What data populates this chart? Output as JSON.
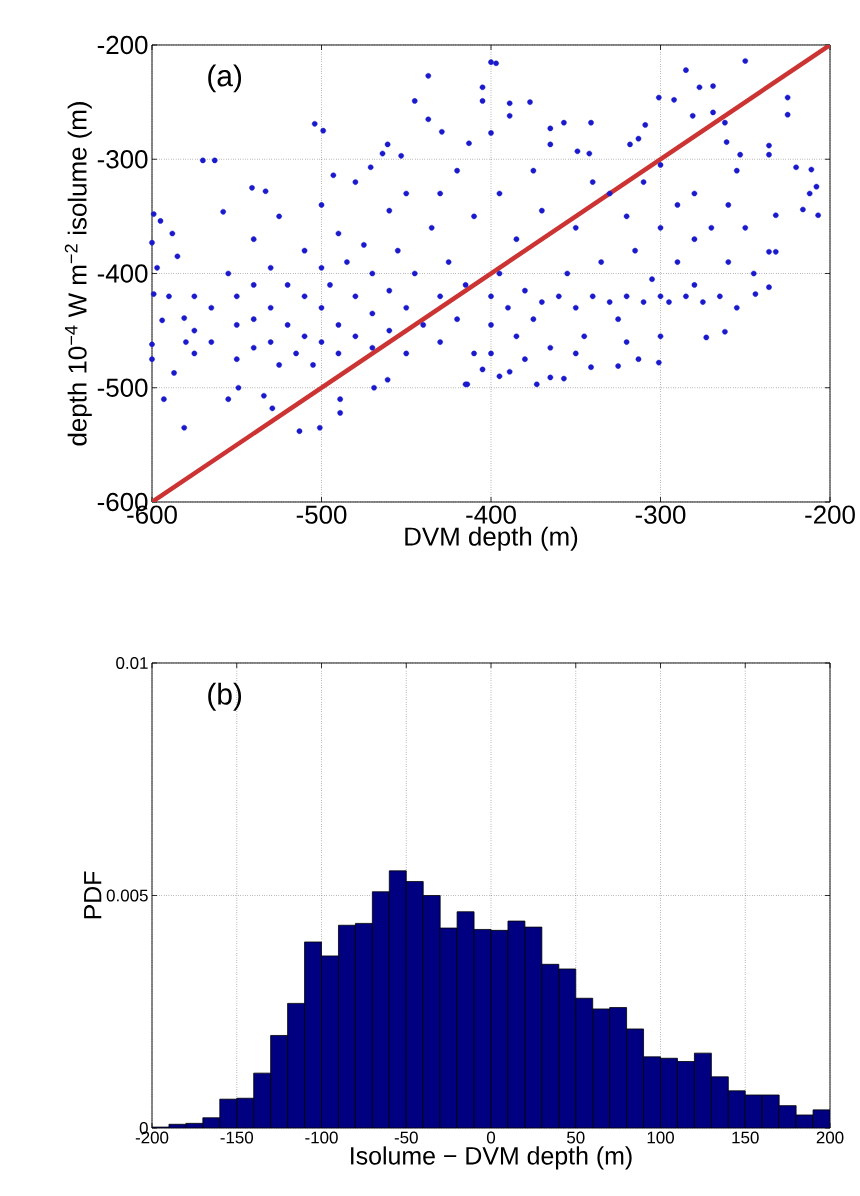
{
  "chart_data": [
    {
      "type": "scatter",
      "xlabel": "DVM depth (m)",
      "ylabel": "depth 10$^{−4}$ W m$^{−2}$ isolume (m)",
      "annotations": [
        "(a)"
      ],
      "series": [
        {
          "type": "scatter",
          "color": "#1a1acc",
          "marker": "circle",
          "x": [
            -437,
            -445,
            -437,
            -429,
            -504,
            -499,
            -570,
            -563,
            -461,
            -464,
            -453,
            -471,
            -541,
            -533,
            -493,
            -599,
            -595,
            -558,
            -581,
            -593,
            -555,
            -549,
            -513,
            -501,
            -489,
            -489,
            -529,
            -534,
            -469,
            -461,
            -587,
            -600,
            -600,
            -594,
            -599,
            -597,
            -600,
            -588,
            -581,
            -415,
            -400,
            -397,
            -405,
            -405,
            -389,
            -377,
            -389,
            -285,
            -250,
            -277,
            -269,
            -301,
            -292,
            -225,
            -225,
            -281,
            -269,
            -262,
            -261,
            -253,
            -236,
            -236,
            -220,
            -211,
            -208,
            -216,
            -207,
            -212,
            -232,
            -232,
            -236,
            -236,
            -244,
            -262,
            -273,
            -301,
            -313,
            -325,
            -341,
            -357,
            -365,
            -373,
            -414,
            -389,
            -405,
            -309,
            -313,
            -318,
            -365,
            -357,
            -341,
            -349,
            -342,
            -365,
            -413,
            -400,
            -575,
            -575,
            -575,
            -565,
            -565,
            -555,
            -550,
            -550,
            -550,
            -540,
            -540,
            -540,
            -530,
            -530,
            -530,
            -525,
            -520,
            -520,
            -515,
            -510,
            -510,
            -510,
            -505,
            -500,
            -500,
            -500,
            -495,
            -490,
            -490,
            -485,
            -480,
            -480,
            -475,
            -470,
            -470,
            -470,
            -460,
            -460,
            -455,
            -450,
            -450,
            -445,
            -440,
            -435,
            -430,
            -430,
            -425,
            -420,
            -415,
            -410,
            -410,
            -540,
            -525,
            -500,
            -490,
            -460,
            -450,
            -480,
            -430,
            -420,
            -585,
            -590,
            -580,
            -400,
            -400,
            -400,
            -395,
            -390,
            -385,
            -380,
            -375,
            -370,
            -365,
            -360,
            -355,
            -350,
            -345,
            -340,
            -335,
            -330,
            -325,
            -320,
            -315,
            -310,
            -305,
            -300,
            -300,
            -295,
            -290,
            -290,
            -285,
            -280,
            -280,
            -280,
            -275,
            -270,
            -265,
            -260,
            -255,
            -320,
            -330,
            -310,
            -300,
            -350,
            -370,
            -385,
            -395,
            -375,
            -340,
            -260,
            -250,
            -245,
            -255,
            -300,
            -320,
            -350,
            -380,
            -395
          ],
          "values": [
            -227,
            -249,
            -265,
            -276,
            -269,
            -275,
            -301,
            -301,
            -287,
            -295,
            -297,
            -307,
            -325,
            -328,
            -314,
            -348,
            -354,
            -346,
            -535,
            -510,
            -510,
            -500,
            -538,
            -535,
            -510,
            -522,
            -518,
            -507,
            -500,
            -493,
            -487,
            -475,
            -462,
            -441,
            -418,
            -395,
            -373,
            -365,
            -439,
            -497,
            -215,
            -216,
            -237,
            -249,
            -251,
            -250,
            -262,
            -222,
            -214,
            -237,
            -236,
            -246,
            -248,
            -246,
            -261,
            -262,
            -259,
            -268,
            -285,
            -296,
            -288,
            -296,
            -307,
            -309,
            -324,
            -344,
            -349,
            -330,
            -349,
            -381,
            -381,
            -412,
            -418,
            -451,
            -456,
            -478,
            -475,
            -481,
            -482,
            -492,
            -491,
            -497,
            -497,
            -486,
            -484,
            -270,
            -282,
            -287,
            -273,
            -268,
            -268,
            -293,
            -295,
            -287,
            -286,
            -277,
            -420,
            -450,
            -470,
            -430,
            -460,
            -400,
            -420,
            -445,
            -475,
            -410,
            -440,
            -465,
            -395,
            -430,
            -460,
            -480,
            -410,
            -445,
            -470,
            -380,
            -420,
            -455,
            -480,
            -395,
            -430,
            -460,
            -410,
            -445,
            -470,
            -390,
            -420,
            -455,
            -375,
            -400,
            -435,
            -465,
            -415,
            -450,
            -380,
            -430,
            -470,
            -400,
            -445,
            -360,
            -420,
            -460,
            -390,
            -440,
            -410,
            -470,
            -350,
            -370,
            -350,
            -340,
            -365,
            -345,
            -330,
            -320,
            -330,
            -310,
            -385,
            -420,
            -460,
            -420,
            -445,
            -470,
            -400,
            -430,
            -455,
            -415,
            -440,
            -425,
            -465,
            -420,
            -400,
            -430,
            -455,
            -420,
            -390,
            -425,
            -440,
            -420,
            -380,
            -425,
            -405,
            -420,
            -360,
            -425,
            -340,
            -390,
            -420,
            -330,
            -370,
            -410,
            -425,
            -360,
            -420,
            -390,
            -430,
            -350,
            -330,
            -320,
            -305,
            -360,
            -345,
            -370,
            -330,
            -310,
            -320,
            -340,
            -360,
            -400,
            -310,
            -455,
            -460,
            -470,
            -475,
            -490
          ]
        },
        {
          "type": "line",
          "color": "#cc3333",
          "marker": "none",
          "line_style": "solid",
          "x": [
            -600,
            -200
          ],
          "values": [
            -600,
            -200
          ]
        }
      ],
      "xlim": [
        -600,
        -200
      ],
      "ylim": [
        -600,
        -200
      ],
      "xticks": [
        -600,
        -500,
        -400,
        -300,
        -200
      ],
      "yticks": [
        -600,
        -500,
        -400,
        -300,
        -200
      ],
      "grid": true
    },
    {
      "type": "histogram",
      "xlabel": "Isolume − DVM depth (m)",
      "ylabel": "PDF",
      "annotations": [
        "(b)"
      ],
      "color": "#000080",
      "bins": [
        -200,
        -190,
        -180,
        -170,
        -160,
        -150,
        -140,
        -130,
        -120,
        -110,
        -100,
        -90,
        -80,
        -70,
        -60,
        -50,
        -40,
        -30,
        -20,
        -10,
        0,
        10,
        20,
        30,
        40,
        50,
        60,
        70,
        80,
        90,
        100,
        110,
        120,
        130,
        140,
        150,
        160,
        170,
        180,
        190,
        200
      ],
      "values": [
        2e-05,
        8e-05,
        0.0001,
        0.00022,
        0.00062,
        0.00064,
        0.00118,
        0.00199,
        0.00268,
        0.004,
        0.0037,
        0.00436,
        0.0044,
        0.00508,
        0.00553,
        0.0053,
        0.005,
        0.0043,
        0.00465,
        0.00427,
        0.00425,
        0.00445,
        0.00432,
        0.00352,
        0.00342,
        0.00279,
        0.00256,
        0.00259,
        0.00213,
        0.00153,
        0.0015,
        0.00143,
        0.00161,
        0.0011,
        0.0008,
        0.00071,
        0.00071,
        0.00048,
        0.00028,
        0.00039
      ],
      "xlim": [
        -200,
        200
      ],
      "ylim": [
        0,
        0.01
      ],
      "xticks": [
        -200,
        -150,
        -100,
        -50,
        0,
        50,
        100,
        150,
        200
      ],
      "yticks": [
        0,
        0.005,
        0.01
      ],
      "grid": true
    }
  ]
}
